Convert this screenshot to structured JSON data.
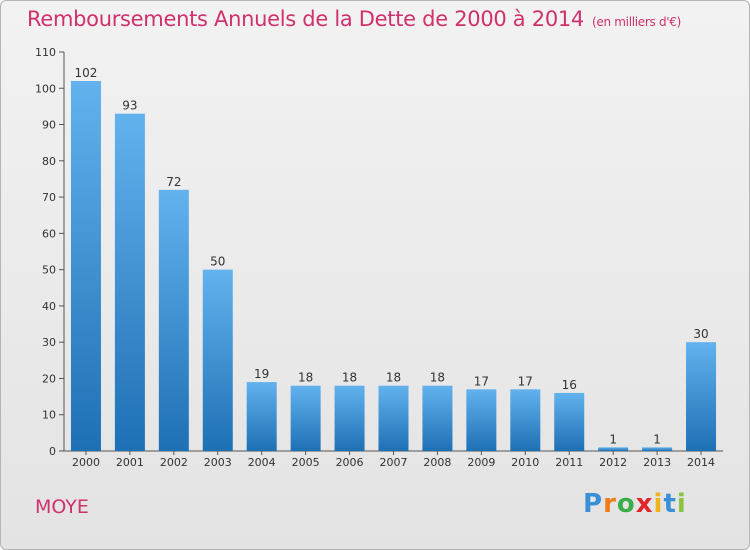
{
  "title": "Remboursements Annuels de la Dette de 2000 à 2014",
  "unit": "(en milliers d'€)",
  "location": "MOYE",
  "logo": {
    "letters": [
      "P",
      "r",
      "o",
      "x",
      "i",
      "t",
      "i"
    ],
    "colors": [
      "#3a8fd6",
      "#f07c1a",
      "#3cae49",
      "#e0262b",
      "#f2b21b",
      "#3a8fd6",
      "#8ac33e"
    ]
  },
  "colors": {
    "bar_light": "#62b2ee",
    "bar_dark": "#1e70b5",
    "title": "#d0306e"
  },
  "chart_data": {
    "type": "bar",
    "title": "Remboursements Annuels de la Dette de 2000 à 2014",
    "xlabel": "",
    "ylabel": "",
    "categories": [
      "2000",
      "2001",
      "2002",
      "2003",
      "2004",
      "2005",
      "2006",
      "2007",
      "2008",
      "2009",
      "2010",
      "2011",
      "2012",
      "2013",
      "2014"
    ],
    "values": [
      102,
      93,
      72,
      50,
      19,
      18,
      18,
      18,
      18,
      17,
      17,
      16,
      1,
      1,
      30
    ],
    "ylim": [
      0,
      110
    ],
    "yticks": [
      0,
      10,
      20,
      30,
      40,
      50,
      60,
      70,
      80,
      90,
      100,
      110
    ],
    "grid": false
  }
}
